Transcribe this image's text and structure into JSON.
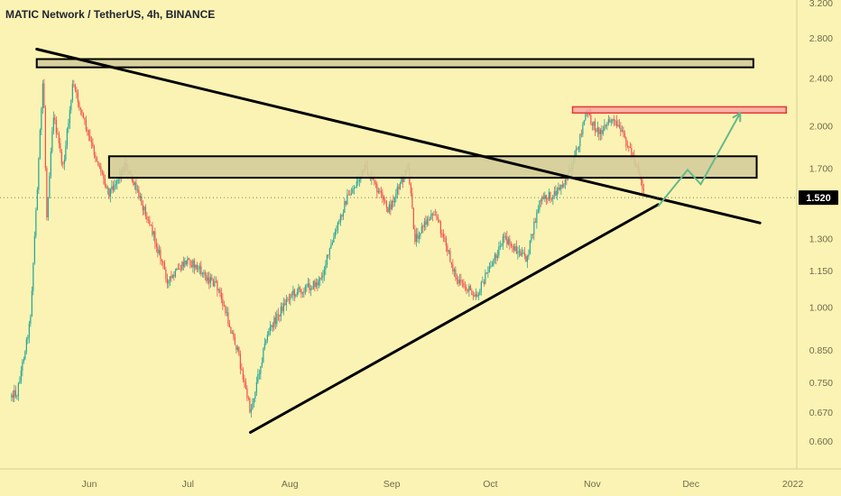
{
  "header": {
    "symbol_title": "MATIC Network / TetherUS, 4h, BINANCE"
  },
  "colors": {
    "background": "#fbf3b3",
    "up_candle": "#26a69a",
    "down_candle": "#ef5350",
    "zone_fill": "#d4cd9a",
    "resistance_fill": "#f4a7a3",
    "resistance_border": "#e53935",
    "projection": "#64b98c",
    "trendline": "#000000",
    "price_badge": "#000000"
  },
  "chart_data": {
    "type": "candlestick",
    "title": "MATIC Network / TetherUS, 4h, BINANCE",
    "xlabel": "",
    "ylabel": "",
    "y_scale": "log",
    "ylim": [
      0.55,
      3.2
    ],
    "x_tick_labels": [
      "Jun",
      "Jul",
      "Aug",
      "Sep",
      "Oct",
      "Nov",
      "Dec",
      "2022"
    ],
    "y_tick_labels": [
      "3.200",
      "2.800",
      "2.400",
      "2.000",
      "1.700",
      "1.520",
      "1.300",
      "1.150",
      "1.000",
      "0.850",
      "0.750",
      "0.670",
      "0.600"
    ],
    "current_price": "1.520",
    "price_path": [
      {
        "date": "2021-05-10",
        "price": 0.72
      },
      {
        "date": "2021-05-14",
        "price": 0.95
      },
      {
        "date": "2021-05-18",
        "price": 2.45
      },
      {
        "date": "2021-05-19",
        "price": 1.4
      },
      {
        "date": "2021-05-21",
        "price": 2.1
      },
      {
        "date": "2021-05-24",
        "price": 1.7
      },
      {
        "date": "2021-05-27",
        "price": 2.35
      },
      {
        "date": "2021-06-01",
        "price": 1.9
      },
      {
        "date": "2021-06-07",
        "price": 1.55
      },
      {
        "date": "2021-06-12",
        "price": 1.72
      },
      {
        "date": "2021-06-19",
        "price": 1.4
      },
      {
        "date": "2021-06-25",
        "price": 1.1
      },
      {
        "date": "2021-07-01",
        "price": 1.2
      },
      {
        "date": "2021-07-10",
        "price": 1.08
      },
      {
        "date": "2021-07-16",
        "price": 0.85
      },
      {
        "date": "2021-07-20",
        "price": 0.67
      },
      {
        "date": "2021-07-25",
        "price": 0.9
      },
      {
        "date": "2021-08-01",
        "price": 1.05
      },
      {
        "date": "2021-08-10",
        "price": 1.1
      },
      {
        "date": "2021-08-18",
        "price": 1.5
      },
      {
        "date": "2021-08-24",
        "price": 1.7
      },
      {
        "date": "2021-08-31",
        "price": 1.45
      },
      {
        "date": "2021-09-06",
        "price": 1.7
      },
      {
        "date": "2021-09-08",
        "price": 1.3
      },
      {
        "date": "2021-09-14",
        "price": 1.45
      },
      {
        "date": "2021-09-21",
        "price": 1.1
      },
      {
        "date": "2021-09-27",
        "price": 1.05
      },
      {
        "date": "2021-10-05",
        "price": 1.3
      },
      {
        "date": "2021-10-12",
        "price": 1.2
      },
      {
        "date": "2021-10-16",
        "price": 1.5
      },
      {
        "date": "2021-10-21",
        "price": 1.55
      },
      {
        "date": "2021-10-26",
        "price": 1.7
      },
      {
        "date": "2021-10-30",
        "price": 2.1
      },
      {
        "date": "2021-11-03",
        "price": 1.95
      },
      {
        "date": "2021-11-07",
        "price": 2.05
      },
      {
        "date": "2021-11-11",
        "price": 1.9
      },
      {
        "date": "2021-11-15",
        "price": 1.7
      },
      {
        "date": "2021-11-17",
        "price": 1.52
      }
    ],
    "zones": [
      {
        "name": "upper supply zone",
        "top": 2.58,
        "bottom": 2.5,
        "from": "2021-05-16",
        "to": "2021-12-20"
      },
      {
        "name": "middle zone",
        "top": 1.78,
        "bottom": 1.64,
        "from": "2021-06-07",
        "to": "2021-12-21"
      },
      {
        "name": "resistance zone",
        "top": 2.15,
        "bottom": 2.1,
        "from": "2021-10-26",
        "to": "2021-12-30"
      }
    ],
    "trendlines": [
      {
        "name": "descending trendline",
        "from": {
          "date": "2021-05-16",
          "price": 2.68
        },
        "to": {
          "date": "2021-12-22",
          "price": 1.38
        }
      },
      {
        "name": "ascending trendline",
        "from": {
          "date": "2021-07-20",
          "price": 0.62
        },
        "to": {
          "date": "2021-11-21",
          "price": 1.48
        }
      }
    ],
    "projection": [
      {
        "date": "2021-11-21",
        "price": 1.47
      },
      {
        "date": "2021-11-30",
        "price": 1.69
      },
      {
        "date": "2021-12-04",
        "price": 1.6
      },
      {
        "date": "2021-12-16",
        "price": 2.1
      }
    ],
    "grid": false,
    "legend": "none"
  }
}
